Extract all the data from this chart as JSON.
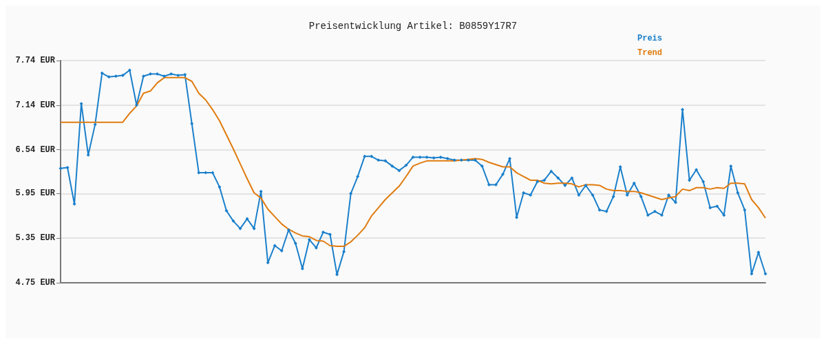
{
  "chart_data": {
    "type": "line",
    "title": "Preisentwicklung Artikel: B0859Y17R7",
    "categories": [
      null,
      null,
      null,
      null,
      null,
      null,
      null,
      null,
      null,
      null,
      null,
      null,
      null,
      null,
      null,
      null,
      null,
      null,
      null,
      null,
      null,
      null,
      null,
      null,
      null,
      null,
      null,
      null,
      null,
      null,
      null,
      null,
      null,
      null,
      null,
      null,
      null,
      null,
      null,
      null,
      null,
      null,
      null,
      null,
      null,
      null,
      null,
      null,
      null,
      null,
      null,
      null,
      null,
      null,
      null,
      null,
      null,
      null,
      null,
      null,
      null,
      null,
      null,
      null,
      null,
      null,
      null,
      null,
      null,
      null,
      null,
      null,
      null,
      null,
      null,
      null,
      null,
      null,
      null,
      null,
      null,
      null,
      null,
      null,
      null,
      null,
      null,
      null,
      null,
      null,
      null,
      null,
      null,
      null,
      null,
      null,
      null,
      null,
      null,
      null,
      null,
      null,
      null
    ],
    "series": [
      {
        "name": "Preis",
        "color": "#1a7fcb",
        "marker": "diamond",
        "values": [
          6.29,
          6.3,
          5.81,
          7.16,
          6.47,
          6.88,
          7.57,
          7.52,
          7.53,
          7.54,
          7.61,
          7.14,
          7.53,
          7.56,
          7.56,
          7.53,
          7.56,
          7.54,
          7.55,
          6.89,
          6.23,
          6.23,
          6.23,
          6.04,
          5.72,
          5.58,
          5.48,
          5.61,
          5.48,
          5.98,
          5.02,
          5.25,
          5.18,
          5.46,
          5.28,
          4.94,
          5.33,
          5.22,
          5.43,
          5.4,
          4.86,
          5.17,
          5.95,
          6.18,
          6.45,
          6.45,
          6.4,
          6.39,
          6.32,
          6.26,
          6.33,
          6.44,
          6.44,
          6.44,
          6.43,
          6.44,
          6.42,
          6.4,
          6.4,
          6.4,
          6.4,
          6.32,
          6.07,
          6.07,
          6.21,
          6.42,
          5.63,
          5.96,
          5.93,
          6.11,
          6.13,
          6.25,
          6.16,
          6.06,
          6.16,
          5.93,
          6.06,
          5.93,
          5.73,
          5.71,
          5.91,
          6.31,
          5.93,
          6.09,
          5.91,
          5.66,
          5.71,
          5.66,
          5.93,
          5.83,
          7.08,
          6.13,
          6.27,
          6.11,
          5.76,
          5.78,
          5.66,
          6.32,
          5.96,
          5.73,
          4.87,
          5.16,
          4.87
        ]
      },
      {
        "name": "Trend",
        "color": "#e07b10",
        "marker": "none",
        "values": [
          6.91,
          6.91,
          6.91,
          6.91,
          6.91,
          6.91,
          6.91,
          6.91,
          6.91,
          6.91,
          7.03,
          7.13,
          7.3,
          7.33,
          7.44,
          7.51,
          7.51,
          7.51,
          7.51,
          7.46,
          7.3,
          7.21,
          7.08,
          6.93,
          6.74,
          6.55,
          6.35,
          6.15,
          5.96,
          5.89,
          5.74,
          5.64,
          5.54,
          5.47,
          5.42,
          5.38,
          5.37,
          5.32,
          5.31,
          5.25,
          5.24,
          5.24,
          5.3,
          5.39,
          5.49,
          5.65,
          5.76,
          5.87,
          5.96,
          6.05,
          6.18,
          6.32,
          6.36,
          6.39,
          6.39,
          6.39,
          6.39,
          6.39,
          6.4,
          6.41,
          6.42,
          6.41,
          6.37,
          6.34,
          6.31,
          6.31,
          6.23,
          6.18,
          6.13,
          6.13,
          6.09,
          6.08,
          6.09,
          6.09,
          6.08,
          6.04,
          6.07,
          6.07,
          6.06,
          6.01,
          5.99,
          5.99,
          5.98,
          5.98,
          5.96,
          5.93,
          5.9,
          5.87,
          5.89,
          5.91,
          6.01,
          5.99,
          6.03,
          6.03,
          6.01,
          6.03,
          6.02,
          6.09,
          6.09,
          6.08,
          5.87,
          5.76,
          5.62
        ]
      }
    ],
    "ylim": [
      4.75,
      7.74
    ],
    "yticks": [
      {
        "value": 4.75,
        "label": "4.75 EUR"
      },
      {
        "value": 5.35,
        "label": "5.35 EUR"
      },
      {
        "value": 5.95,
        "label": "5.95 EUR"
      },
      {
        "value": 6.54,
        "label": "6.54 EUR"
      },
      {
        "value": 7.14,
        "label": "7.14 EUR"
      },
      {
        "value": 7.74,
        "label": "7.74 EUR"
      }
    ],
    "grid": "y",
    "legend": "top right",
    "tick_labels": "y"
  }
}
